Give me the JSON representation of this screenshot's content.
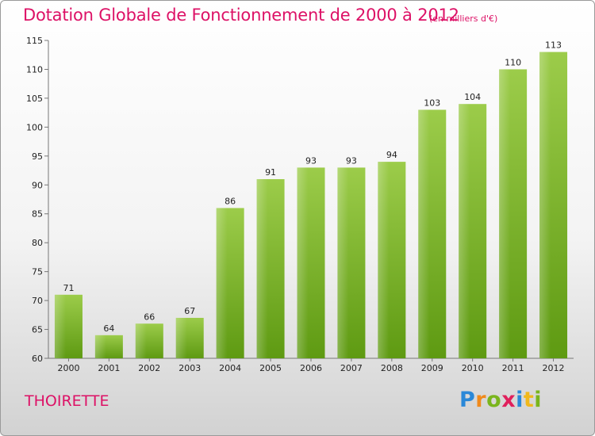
{
  "title": "Dotation Globale de Fonctionnement de 2000 à 2012",
  "subtitle": "(en milliers d'€)",
  "commune": "THOIRETTE",
  "logo": {
    "letters": [
      "P",
      "r",
      "o",
      "x",
      "i",
      "t",
      "i"
    ],
    "colors": [
      "#2a88d8",
      "#f08a1c",
      "#7ab51d",
      "#e0205c",
      "#2a88d8",
      "#f0b81c",
      "#7ab51d"
    ]
  },
  "chart_data": {
    "type": "bar",
    "categories": [
      "2000",
      "2001",
      "2002",
      "2003",
      "2004",
      "2005",
      "2006",
      "2007",
      "2008",
      "2009",
      "2010",
      "2011",
      "2012"
    ],
    "values": [
      71,
      64,
      66,
      67,
      86,
      91,
      93,
      93,
      94,
      103,
      104,
      110,
      113
    ],
    "ylim": [
      60,
      115
    ],
    "yticks": [
      60,
      65,
      70,
      75,
      80,
      85,
      90,
      95,
      100,
      105,
      110,
      115
    ],
    "grid": false,
    "legend": "none",
    "bar_color_top": "#9ccc4a",
    "bar_color_bottom": "#5e9a12"
  }
}
